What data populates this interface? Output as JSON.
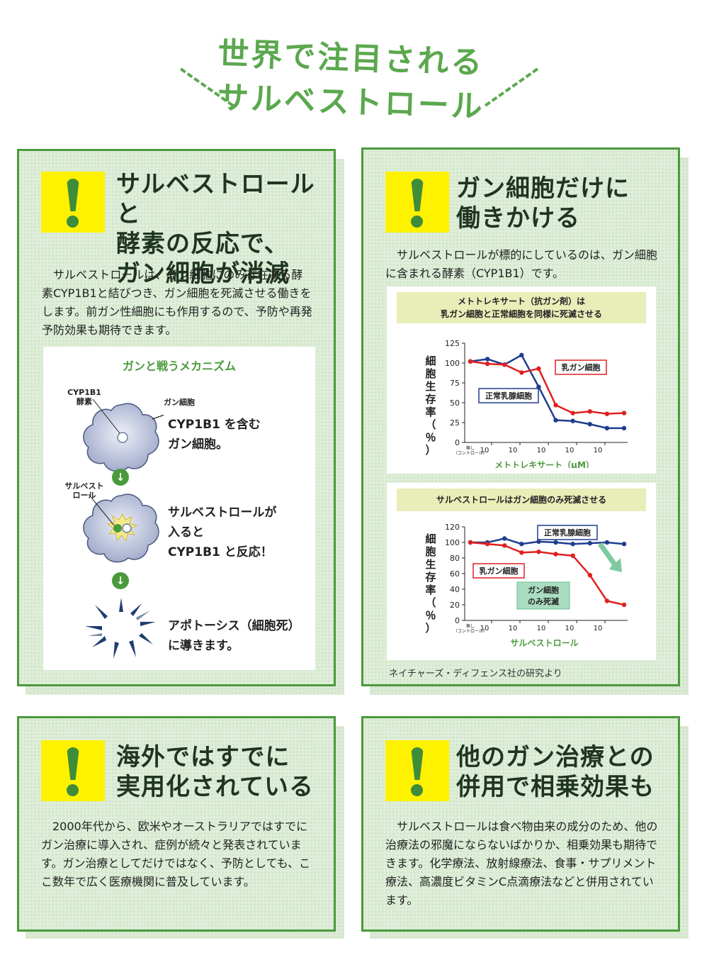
{
  "header": {
    "title_line1": "世界で注目される",
    "title_line2": "サルベストロール"
  },
  "card1": {
    "heading": [
      "サルベストロールと",
      "酵素の反応で、",
      "ガン細胞が消滅"
    ],
    "body": "サルベストロールは、ガン細胞にのみ存在する酵素CYP1B1と結びつき、ガン細胞を死滅させる働きをします。前ガン性細胞にも作用するので、予防や再発予防効果も期待できます。",
    "mechanism": {
      "title": "ガンと戦うメカニズム",
      "label_enzyme": [
        "CYP1B1",
        "酵素"
      ],
      "label_cell": "ガン細胞",
      "label_salvestrol": [
        "サルベスト",
        "ロール"
      ],
      "step1": [
        "CYP1B1 を含む",
        "ガン細胞。"
      ],
      "step2": [
        "サルベストロールが",
        "入ると",
        "CYP1B1 と反応！"
      ],
      "step3": [
        "アポトーシス（細胞死）",
        "に導きます。"
      ]
    }
  },
  "card2": {
    "heading": [
      "ガン細胞だけに",
      "働きかける"
    ],
    "body": "サルベストロールが標的にしているのは、ガン細胞に含まれる酵素（CYP1B1）です。",
    "footnote": "ネイチャーズ・ディフェンス社の研究より"
  },
  "card3": {
    "heading": [
      "海外ではすでに",
      "実用化されている"
    ],
    "body": "2000年代から、欧米やオーストラリアではすでにガン治療に導入され、症例が続々と発表されています。ガン治療としてだけではなく、予防としても、ここ数年で広く医療機関に普及しています。"
  },
  "card4": {
    "heading": [
      "他のガン治療との",
      "併用で相乗効果も"
    ],
    "body": "サルベストロールは食べ物由来の成分のため、他の治療法の邪魔にならないばかりか、相乗効果も期待できます。化学療法、放射線療法、食事・サプリメント療法、高濃度ビタミンC点滴療法などと併用されています。"
  },
  "colors": {
    "accent_green": "#4a9a3c",
    "title_green": "#5ba84e",
    "warning_yellow": "#fff200",
    "series_red": "#e02020",
    "series_blue": "#1f3d8f"
  },
  "chart_data": [
    {
      "type": "line",
      "title": "メトトレキサート（抗ガン剤）は 乳ガン細胞と正常細胞を同様に死滅させる",
      "title_lines": [
        "メトトレキサート（抗ガン剤）は",
        "乳ガン細胞と正常細胞を同様に死滅させる"
      ],
      "xlabel": "メトトレキサート（μM）",
      "ylabel": "細胞生存率（％）",
      "ylim": [
        0,
        125
      ],
      "yticks": [
        0,
        25,
        50,
        75,
        100,
        125
      ],
      "xticks": [
        "無し\n（コントロール）",
        "10",
        "10",
        "10",
        "10",
        "10"
      ],
      "xtick_labels": [
        "無し",
        "（コントロール）",
        "10",
        "10",
        "10",
        "10",
        "10"
      ],
      "grid": false,
      "series": [
        {
          "name": "正常乳腺細胞",
          "color": "#1f3d8f",
          "values": [
            102,
            105,
            98,
            110,
            70,
            28,
            27,
            23,
            18,
            18
          ]
        },
        {
          "name": "乳ガン細胞",
          "color": "#e02020",
          "values": [
            102,
            99,
            98,
            88,
            93,
            47,
            37,
            39,
            36,
            37
          ]
        }
      ]
    },
    {
      "type": "line",
      "title": "サルベストロールはガン細胞のみ死滅させる",
      "title_lines": [
        "サルベストロールはガン細胞のみ死滅させる"
      ],
      "xlabel": "サルベストロール",
      "ylabel": "細胞生存率（％）",
      "ylim": [
        0,
        120
      ],
      "yticks": [
        0,
        20,
        40,
        60,
        80,
        100,
        120
      ],
      "xtick_labels": [
        "無し",
        "（コントロール）",
        "10",
        "10",
        "10",
        "10",
        "10"
      ],
      "grid": false,
      "annotation": [
        "ガン細胞",
        "のみ死滅"
      ],
      "series": [
        {
          "name": "正常乳腺細胞",
          "color": "#1f3d8f",
          "values": [
            100,
            100,
            105,
            98,
            101,
            100,
            98,
            99,
            100,
            98
          ]
        },
        {
          "name": "乳ガン細胞",
          "color": "#e02020",
          "values": [
            100,
            98,
            96,
            87,
            88,
            85,
            83,
            58,
            25,
            20
          ]
        }
      ]
    }
  ]
}
